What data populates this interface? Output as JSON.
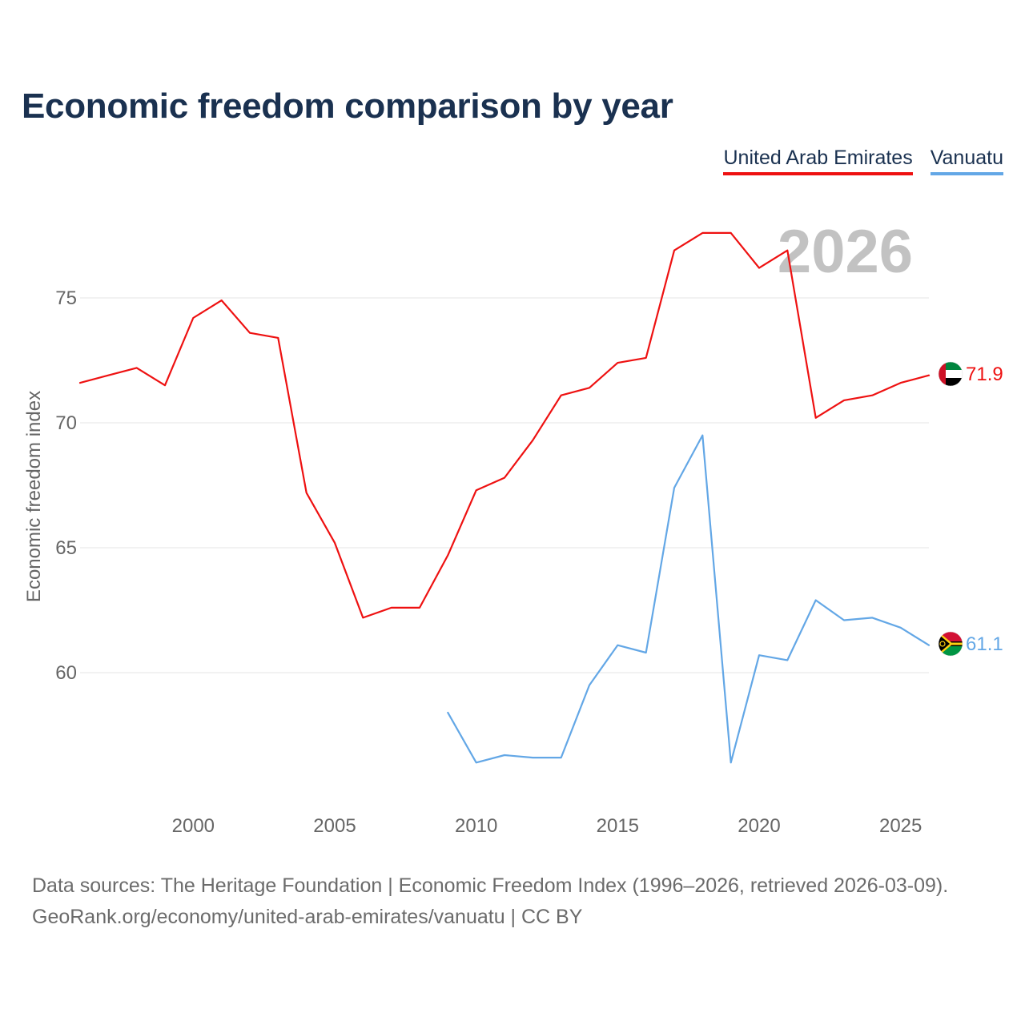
{
  "title": "Economic freedom comparison by year",
  "legend": [
    {
      "label": "United Arab Emirates",
      "color": "#ee1111"
    },
    {
      "label": "Vanuatu",
      "color": "#63a7e6"
    }
  ],
  "footer": {
    "line1": "Data sources: The Heritage Foundation | Economic Freedom Index (1996–2026, retrieved 2026-03-09).",
    "line2": "GeoRank.org/economy/united-arab-emirates/vanuatu | CC BY"
  },
  "chart_data": {
    "type": "line",
    "title": "Economic freedom comparison by year",
    "xlabel": "",
    "ylabel": "Economic freedom index",
    "xlim": [
      1996,
      2026
    ],
    "ylim": [
      55,
      80
    ],
    "xticks": [
      2000,
      2005,
      2010,
      2015,
      2020,
      2025
    ],
    "yticks": [
      60,
      65,
      70,
      75
    ],
    "watermark": "2026",
    "grid": true,
    "series": [
      {
        "name": "United Arab Emirates",
        "color": "#ee1111",
        "flag": "uae-flag-icon",
        "end_label": "71.9",
        "x": [
          1996,
          1997,
          1998,
          1999,
          2000,
          2001,
          2002,
          2003,
          2004,
          2005,
          2006,
          2007,
          2008,
          2009,
          2010,
          2011,
          2012,
          2013,
          2014,
          2015,
          2016,
          2017,
          2018,
          2019,
          2020,
          2021,
          2022,
          2023,
          2024,
          2025,
          2026
        ],
        "values": [
          71.6,
          71.9,
          72.2,
          71.5,
          74.2,
          74.9,
          73.6,
          73.4,
          67.2,
          65.2,
          62.2,
          62.6,
          62.6,
          64.7,
          67.3,
          67.8,
          69.3,
          71.1,
          71.4,
          72.4,
          72.6,
          76.9,
          77.6,
          77.6,
          76.2,
          76.9,
          70.2,
          70.9,
          71.1,
          71.6,
          71.9
        ]
      },
      {
        "name": "Vanuatu",
        "color": "#63a7e6",
        "flag": "vanuatu-flag-icon",
        "end_label": "61.1",
        "x": [
          2009,
          2010,
          2011,
          2012,
          2013,
          2014,
          2015,
          2016,
          2017,
          2018,
          2019,
          2020,
          2021,
          2022,
          2023,
          2024,
          2025,
          2026
        ],
        "values": [
          58.4,
          56.4,
          56.7,
          56.6,
          56.6,
          59.5,
          61.1,
          60.8,
          67.4,
          69.5,
          56.4,
          60.7,
          60.5,
          62.9,
          62.1,
          62.2,
          61.8,
          61.1
        ]
      }
    ]
  }
}
